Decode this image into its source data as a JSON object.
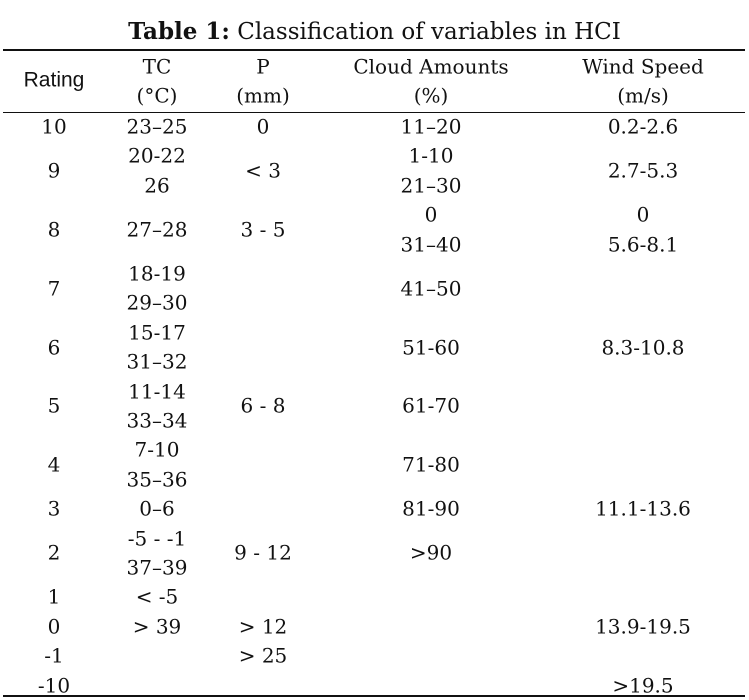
{
  "title": {
    "bold": "Table 1:",
    "rest": " Classification of variables in HCI"
  },
  "headers": {
    "rating": "Rating",
    "tc": [
      "TC",
      "(°C)"
    ],
    "p": [
      "P",
      "(mm)"
    ],
    "cloud": [
      "Cloud Amounts",
      "(%)"
    ],
    "wind": [
      "Wind Speed",
      "(m/s)"
    ]
  },
  "cells": {
    "rating": [
      {
        "row": 0,
        "text": "10"
      },
      {
        "row": 1.5,
        "text": "9"
      },
      {
        "row": 3.5,
        "text": "8"
      },
      {
        "row": 5.5,
        "text": "7"
      },
      {
        "row": 7.5,
        "text": "6"
      },
      {
        "row": 9.5,
        "text": "5"
      },
      {
        "row": 11.5,
        "text": "4"
      },
      {
        "row": 13,
        "text": "3"
      },
      {
        "row": 14.5,
        "text": "2"
      },
      {
        "row": 16,
        "text": "1"
      },
      {
        "row": 17,
        "text": "0"
      },
      {
        "row": 18,
        "text": "-1"
      },
      {
        "row": 19,
        "text": "-10"
      }
    ],
    "tc": [
      {
        "row": 0,
        "text": "23–25"
      },
      {
        "row": 1,
        "text": "20-22"
      },
      {
        "row": 2,
        "text": "26"
      },
      {
        "row": 3.5,
        "text": "27–28"
      },
      {
        "row": 5,
        "text": "18-19"
      },
      {
        "row": 6,
        "text": "29–30"
      },
      {
        "row": 7,
        "text": "15-17"
      },
      {
        "row": 8,
        "text": "31–32"
      },
      {
        "row": 9,
        "text": "11-14"
      },
      {
        "row": 10,
        "text": "33–34"
      },
      {
        "row": 11,
        "text": "7-10"
      },
      {
        "row": 12,
        "text": "35–36"
      },
      {
        "row": 13,
        "text": "0–6"
      },
      {
        "row": 14,
        "text": "-5 - -1"
      },
      {
        "row": 15,
        "text": "37–39"
      },
      {
        "row": 16,
        "text": "< -5"
      },
      {
        "row": 17,
        "text": "> 39"
      }
    ],
    "p": [
      {
        "row": 0,
        "text": "0"
      },
      {
        "row": 1.5,
        "text": "< 3"
      },
      {
        "row": 3.5,
        "text": "3 - 5"
      },
      {
        "row": 9.5,
        "text": "6 - 8"
      },
      {
        "row": 14.5,
        "text": "9 - 12"
      },
      {
        "row": 17,
        "text": "> 12"
      },
      {
        "row": 18,
        "text": "> 25"
      }
    ],
    "cloud": [
      {
        "row": 0,
        "text": "11–20"
      },
      {
        "row": 1,
        "text": "1-10"
      },
      {
        "row": 2,
        "text": "21–30"
      },
      {
        "row": 3,
        "text": "0"
      },
      {
        "row": 4,
        "text": "31–40"
      },
      {
        "row": 5.5,
        "text": "41–50"
      },
      {
        "row": 7.5,
        "text": "51-60"
      },
      {
        "row": 9.5,
        "text": "61-70"
      },
      {
        "row": 11.5,
        "text": "71-80"
      },
      {
        "row": 13,
        "text": "81-90"
      },
      {
        "row": 14.5,
        "text": ">90"
      }
    ],
    "wind": [
      {
        "row": 0,
        "text": "0.2-2.6"
      },
      {
        "row": 1.5,
        "text": "2.7-5.3"
      },
      {
        "row": 3,
        "text": "0"
      },
      {
        "row": 4,
        "text": "5.6-8.1"
      },
      {
        "row": 7.5,
        "text": "8.3-10.8"
      },
      {
        "row": 13,
        "text": "11.1-13.6"
      },
      {
        "row": 17,
        "text": "13.9-19.5"
      },
      {
        "row": 19,
        "text": ">19.5"
      }
    ]
  }
}
